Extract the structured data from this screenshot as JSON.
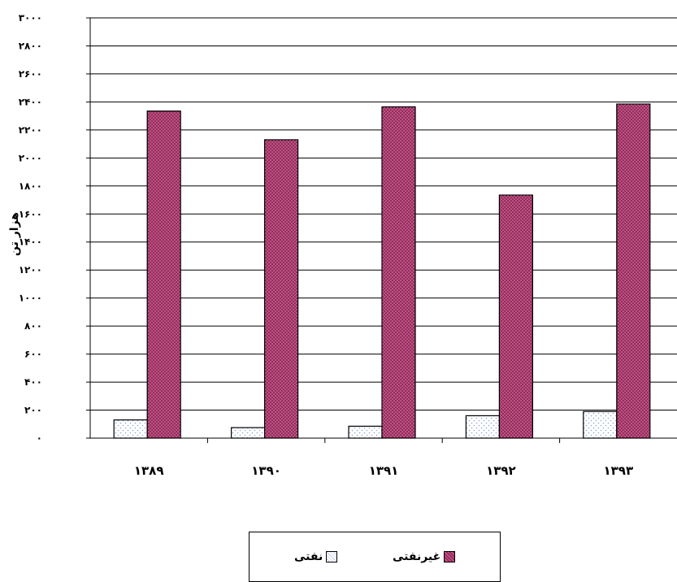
{
  "chart_data": {
    "type": "bar",
    "title": "",
    "xlabel": "",
    "ylabel": "هزار تن",
    "categories": [
      "۱۳۸۹",
      "۱۳۹۰",
      "۱۳۹۱",
      "۱۳۹۲",
      "۱۳۹۳"
    ],
    "series": [
      {
        "name": "نفتی",
        "values": [
          130,
          75,
          85,
          160,
          190
        ],
        "color": "#ffffff",
        "pattern_color": "#8fa3d6"
      },
      {
        "name": "غیرنفتی",
        "values": [
          2335,
          2130,
          2365,
          1735,
          2385
        ],
        "color": "#9b2a5e",
        "pattern_color": "#f2c6d8"
      }
    ],
    "ylim": [
      0,
      3000
    ],
    "yticks": [
      0,
      200,
      400,
      600,
      800,
      1000,
      1200,
      1400,
      1600,
      1800,
      2000,
      2200,
      2400,
      2600,
      2800,
      3000
    ],
    "ytick_labels": [
      "۰",
      "۲۰۰",
      "۴۰۰",
      "۶۰۰",
      "۸۰۰",
      "۱۰۰۰",
      "۱۲۰۰",
      "۱۴۰۰",
      "۱۶۰۰",
      "۱۸۰۰",
      "۲۰۰۰",
      "۲۲۰۰",
      "۲۴۰۰",
      "۲۶۰۰",
      "۲۸۰۰",
      "۳۰۰۰"
    ],
    "grid": true,
    "legend_position": "bottom"
  },
  "legend": {
    "items": [
      {
        "label": "غیرنفتی",
        "color": "#9b2a5e"
      },
      {
        "label": "نفتی",
        "color": "#ffffff"
      }
    ]
  }
}
